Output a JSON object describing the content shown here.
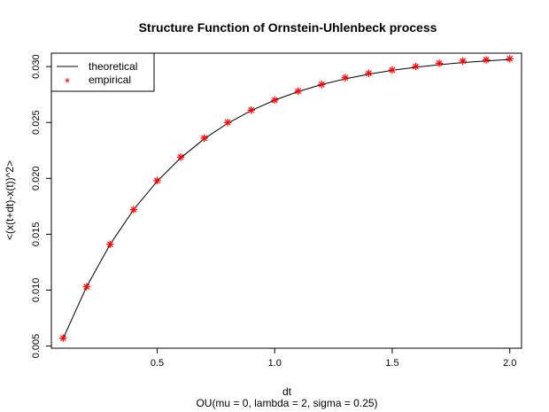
{
  "chart_data": {
    "type": "line",
    "title": "Structure Function of Ornstein-Uhlenbeck process",
    "xlabel": "dt",
    "ylabel": "<(x(t+dt)-x(t))^2>",
    "subtitle": "OU(mu = 0, lambda = 2, sigma = 0.25)",
    "xlim": [
      0.05,
      2.05
    ],
    "ylim": [
      0.0048,
      0.0312
    ],
    "x_ticks": [
      0.5,
      1.0,
      1.5,
      2.0
    ],
    "x_tick_labels": [
      "0.5",
      "1.0",
      "1.5",
      "2.0"
    ],
    "y_ticks": [
      0.005,
      0.01,
      0.015,
      0.02,
      0.025,
      0.03
    ],
    "y_tick_labels": [
      "0.005",
      "0.010",
      "0.015",
      "0.020",
      "0.025",
      "0.030"
    ],
    "grid": false,
    "legend_position": "top-left",
    "series": [
      {
        "name": "theoretical",
        "kind": "line",
        "color": "#000000",
        "x": [
          0.1,
          0.2,
          0.3,
          0.4,
          0.5,
          0.6,
          0.7,
          0.8,
          0.9,
          1.0,
          1.1,
          1.2,
          1.3,
          1.4,
          1.5,
          1.6,
          1.7,
          1.8,
          1.9,
          2.0
        ],
        "y": [
          0.00567,
          0.0103,
          0.01409,
          0.0172,
          0.01974,
          0.02182,
          0.02353,
          0.02492,
          0.02606,
          0.027,
          0.02776,
          0.02839,
          0.0289,
          0.02932,
          0.02966,
          0.02994,
          0.03017,
          0.03036,
          0.03051,
          0.03064
        ]
      },
      {
        "name": "empirical",
        "kind": "points",
        "marker": "*",
        "color": "#ff0000",
        "x": [
          0.1,
          0.2,
          0.3,
          0.4,
          0.5,
          0.6,
          0.7,
          0.8,
          0.9,
          1.0,
          1.1,
          1.2,
          1.3,
          1.4,
          1.5,
          1.6,
          1.7,
          1.8,
          1.9,
          2.0
        ],
        "y": [
          0.0057,
          0.0103,
          0.0141,
          0.0172,
          0.0198,
          0.0219,
          0.0236,
          0.025,
          0.0261,
          0.027,
          0.0278,
          0.0284,
          0.029,
          0.0294,
          0.0297,
          0.03,
          0.0303,
          0.0305,
          0.0306,
          0.0307
        ]
      }
    ]
  }
}
